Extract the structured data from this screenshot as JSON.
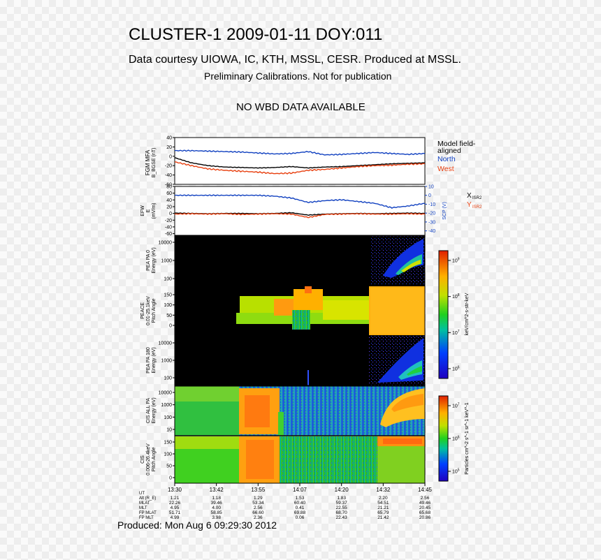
{
  "header": {
    "title": "CLUSTER-1 2009-01-11 DOY:011",
    "courtesy": "Data courtesy UIOWA, IC, KTH, MSSL, CESR. Produced at MSSL.",
    "preliminary": "Preliminary Calibrations. Not for publication",
    "wbd": "NO WBD DATA AVAILABLE"
  },
  "footer": {
    "produced": "Produced: Mon Aug  6 09:29:30 2012"
  },
  "colors": {
    "north": "#1040c0",
    "west": "#e84010",
    "model": "#000000"
  },
  "chart_data": [
    {
      "type": "line",
      "panel": "fgm",
      "ylabel": [
        "FGM MFA",
        "B_BGSE (nT)"
      ],
      "ylim": [
        -60,
        40
      ],
      "yticks": [
        40,
        20,
        0,
        -20,
        -40,
        -60
      ],
      "legend": [
        "Model field-",
        "aligned",
        "North",
        "West"
      ],
      "x": [
        0,
        5,
        10,
        15,
        20,
        25,
        30,
        35,
        40,
        45,
        50,
        55,
        60,
        65,
        70,
        75
      ],
      "series": [
        {
          "name": "North",
          "values": [
            12,
            12,
            11,
            10,
            9,
            7,
            5,
            6,
            10,
            3,
            4,
            6,
            8,
            6,
            4,
            6
          ]
        },
        {
          "name": "Model field-aligned",
          "values": [
            -3,
            -14,
            -20,
            -23,
            -24,
            -25,
            -24,
            -22,
            -25,
            -23,
            -22,
            -20,
            -18,
            -16,
            -15,
            -14
          ]
        },
        {
          "name": "West",
          "values": [
            -12,
            -20,
            -27,
            -30,
            -32,
            -34,
            -37,
            -36,
            -30,
            -28,
            -25,
            -22,
            -20,
            -19,
            -17,
            -16
          ]
        }
      ]
    },
    {
      "type": "line",
      "panel": "efw",
      "ylabel": [
        "EFW",
        "E",
        "(mV/m)"
      ],
      "ylim": [
        -65,
        80
      ],
      "yticks": [
        80,
        60,
        40,
        20,
        0,
        -20,
        -40,
        -60
      ],
      "y2label": "SCP (V)",
      "y2lim": [
        -45,
        10
      ],
      "y2ticks": [
        10,
        0,
        -10,
        -20,
        -30,
        -40
      ],
      "legend": [
        "X",
        "ISR2",
        "Y",
        "ISR2"
      ],
      "x": [
        0,
        5,
        10,
        15,
        20,
        25,
        30,
        35,
        40,
        45,
        50,
        55,
        60,
        65,
        70,
        75
      ],
      "series": [
        {
          "name": "X ISR2",
          "values": [
            1,
            0,
            -1,
            0,
            0,
            -1,
            0,
            2,
            -5,
            -2,
            -1,
            0,
            -1,
            0,
            1,
            0
          ]
        },
        {
          "name": "Y ISR2",
          "values": [
            -2,
            -1,
            -2,
            -1,
            -3,
            -2,
            -1,
            -2,
            -12,
            -3,
            -2,
            -1,
            -2,
            -2,
            -1,
            -2
          ]
        },
        {
          "name": "SCP",
          "values": [
            0,
            0,
            0,
            0,
            0,
            0,
            -1,
            -3,
            -8,
            -6,
            -5,
            -7,
            -9,
            -14,
            -12,
            -9
          ]
        }
      ]
    },
    {
      "type": "heatmap",
      "panel": "pea0",
      "ylabel": [
        "PEA PA 0",
        "Energy (eV)"
      ],
      "yticks": [
        "10000",
        "1000",
        "100"
      ]
    },
    {
      "type": "heatmap",
      "panel": "peace",
      "ylabel": [
        "PEACE",
        "0.01-25.1keV",
        "Pitch Angle"
      ],
      "yticks": [
        "150",
        "100",
        "50",
        "0"
      ]
    },
    {
      "type": "heatmap",
      "panel": "pea180",
      "ylabel": [
        "PEA PA 180",
        "Energy (eV)"
      ],
      "yticks": [
        "10000",
        "1000",
        "100"
      ]
    },
    {
      "type": "heatmap",
      "panel": "cisall",
      "ylabel": [
        "CIS ALL PA",
        "Energy (eV)"
      ],
      "yticks": [
        "10000",
        "1000",
        "100",
        "10"
      ]
    },
    {
      "type": "heatmap",
      "panel": "cispa",
      "ylabel": [
        "CIS",
        "0.006-26.4keV",
        "Pitch Angle"
      ],
      "yticks": [
        "150",
        "100",
        "50",
        "0"
      ]
    },
    {
      "type": "colorbar",
      "panel": "electron-colorbar",
      "label": "keV/cm^2-s-str-keV",
      "ticks": [
        "10^9",
        "10^8",
        "10^7",
        "10^6"
      ]
    },
    {
      "type": "colorbar",
      "panel": "ion-colorbar",
      "label": "Particles cm^-2 s^-1 sr^-1 keV^-1",
      "ticks": [
        "10^7",
        "10^6",
        "10^5"
      ]
    },
    {
      "type": "table",
      "panel": "ephemeris",
      "row_labels": [
        "UT",
        "Alt (R_E)",
        "MLAT",
        "MLT",
        "FP MLAT",
        "FP MLT"
      ],
      "columns": [
        {
          "UT": "13:30",
          "vals": [
            "1.21",
            "22.26",
            "4.95",
            "51.71",
            "4.99"
          ]
        },
        {
          "UT": "13:42",
          "vals": [
            "1.18",
            "39.46",
            "4.00",
            "58.85",
            "3.98"
          ]
        },
        {
          "UT": "13:55",
          "vals": [
            "1.29",
            "53.34",
            "2.56",
            "66.60",
            "2.36"
          ]
        },
        {
          "UT": "14:07",
          "vals": [
            "1.53",
            "60.40",
            "0.41",
            "69.88",
            "0.06"
          ]
        },
        {
          "UT": "14:20",
          "vals": [
            "1.83",
            "59.37",
            "22.55",
            "68.70",
            "22.43"
          ]
        },
        {
          "UT": "14:32",
          "vals": [
            "2.20",
            "54.51",
            "21.21",
            "65.79",
            "21.42"
          ]
        },
        {
          "UT": "14:45",
          "vals": [
            "2.56",
            "49.46",
            "20.45",
            "65.68",
            "20.86"
          ]
        }
      ]
    }
  ]
}
